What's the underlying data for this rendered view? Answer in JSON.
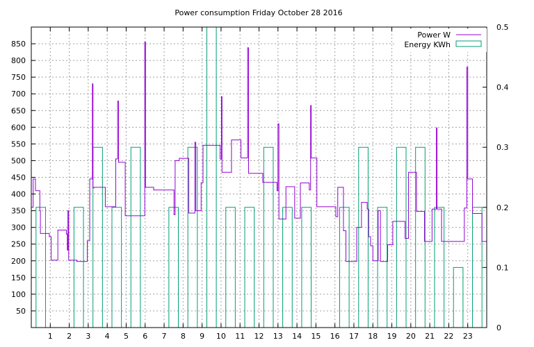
{
  "chart_data": {
    "type": "line",
    "title": "Power consumption Friday October 28 2016",
    "xlabel": "",
    "ylabel": "",
    "y2label": "",
    "xlim": [
      0,
      24
    ],
    "ylim": [
      0,
      900
    ],
    "y2lim": [
      0,
      0.5
    ],
    "xticks": [
      1,
      2,
      3,
      4,
      5,
      6,
      7,
      8,
      9,
      10,
      11,
      12,
      13,
      14,
      15,
      16,
      17,
      18,
      19,
      20,
      21,
      22,
      23
    ],
    "yticks": [
      50,
      100,
      150,
      200,
      250,
      300,
      350,
      400,
      450,
      500,
      550,
      600,
      650,
      700,
      750,
      800,
      850
    ],
    "y2ticks": [
      0,
      0.1,
      0.2,
      0.3,
      0.4,
      0.5
    ],
    "grid": true,
    "legend_position": "top-right",
    "colors": {
      "power": "#9400d3",
      "energy": "#009e73"
    },
    "series": [
      {
        "name": "Power W",
        "axis": "y",
        "style": "step-line",
        "points": [
          [
            0.0,
            360
          ],
          [
            0.1,
            445
          ],
          [
            0.22,
            410
          ],
          [
            0.45,
            350
          ],
          [
            0.48,
            282
          ],
          [
            0.95,
            272
          ],
          [
            1.05,
            202
          ],
          [
            1.4,
            292
          ],
          [
            1.85,
            280
          ],
          [
            1.9,
            232
          ],
          [
            1.93,
            350
          ],
          [
            1.97,
            202
          ],
          [
            2.4,
            198
          ],
          [
            2.95,
            260
          ],
          [
            3.08,
            445
          ],
          [
            3.22,
            730
          ],
          [
            3.25,
            418
          ],
          [
            3.3,
            420
          ],
          [
            3.9,
            362
          ],
          [
            4.45,
            505
          ],
          [
            4.55,
            678
          ],
          [
            4.6,
            495
          ],
          [
            4.95,
            335
          ],
          [
            5.98,
            855
          ],
          [
            6.02,
            420
          ],
          [
            6.45,
            412
          ],
          [
            7.52,
            338
          ],
          [
            7.58,
            500
          ],
          [
            7.8,
            507
          ],
          [
            8.3,
            343
          ],
          [
            8.62,
            555
          ],
          [
            8.67,
            350
          ],
          [
            8.95,
            434
          ],
          [
            9.05,
            546
          ],
          [
            9.95,
            505
          ],
          [
            10.02,
            692
          ],
          [
            10.05,
            465
          ],
          [
            10.55,
            562
          ],
          [
            11.05,
            508
          ],
          [
            11.4,
            838
          ],
          [
            11.45,
            462
          ],
          [
            12.2,
            435
          ],
          [
            12.95,
            410
          ],
          [
            13.0,
            610
          ],
          [
            13.05,
            325
          ],
          [
            13.42,
            422
          ],
          [
            13.88,
            328
          ],
          [
            14.18,
            433
          ],
          [
            14.65,
            412
          ],
          [
            14.72,
            665
          ],
          [
            14.75,
            508
          ],
          [
            15.05,
            362
          ],
          [
            16.05,
            332
          ],
          [
            16.15,
            420
          ],
          [
            16.45,
            290
          ],
          [
            16.58,
            198
          ],
          [
            17.15,
            300
          ],
          [
            17.4,
            375
          ],
          [
            17.7,
            355
          ],
          [
            17.78,
            272
          ],
          [
            17.88,
            245
          ],
          [
            18.0,
            200
          ],
          [
            18.28,
            350
          ],
          [
            18.4,
            198
          ],
          [
            18.78,
            248
          ],
          [
            19.05,
            318
          ],
          [
            19.7,
            267
          ],
          [
            19.88,
            465
          ],
          [
            20.3,
            348
          ],
          [
            20.72,
            258
          ],
          [
            21.12,
            355
          ],
          [
            21.35,
            598
          ],
          [
            21.38,
            355
          ],
          [
            21.62,
            258
          ],
          [
            22.82,
            358
          ],
          [
            22.95,
            780
          ],
          [
            23.0,
            445
          ],
          [
            23.25,
            342
          ],
          [
            23.75,
            258
          ],
          [
            24.0,
            258
          ]
        ]
      },
      {
        "name": "Energy KWh",
        "axis": "y2",
        "style": "histogram",
        "values": [
          0.2,
          0,
          0.2,
          0.3,
          0.2,
          0.3,
          0,
          0.2,
          0.3,
          0.5,
          0.2,
          0.2,
          0.3,
          0.2,
          0.2,
          0,
          0.2,
          0.3,
          0.2,
          0.3,
          0.3,
          0.2,
          0.1,
          0.2
        ]
      }
    ]
  }
}
